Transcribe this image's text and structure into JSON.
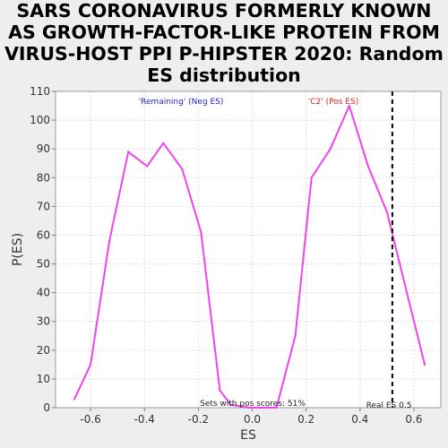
{
  "chart_data": {
    "type": "line",
    "title": "SARS CORONAVIRUS FORMERLY KNOWN AS GROWTH-FACTOR-LIKE PROTEIN FROM VIRUS-HOST PPI P-HIPSTER 2020: Random ES distribution",
    "xlabel": "ES",
    "ylabel": "P(ES)",
    "xlim": [
      -0.73,
      0.7
    ],
    "ylim": [
      0,
      110
    ],
    "x_ticks": [
      -0.6,
      -0.4,
      -0.2,
      0.0,
      0.2,
      0.4,
      0.6
    ],
    "x_tick_labels": [
      "-0.6",
      "-0.4",
      "-0.2",
      "0.0",
      "0.2",
      "0.4",
      "0.6"
    ],
    "y_ticks": [
      0,
      10,
      20,
      30,
      40,
      50,
      60,
      70,
      80,
      90,
      100,
      110
    ],
    "y_tick_labels": [
      "0",
      "10",
      "20",
      "30",
      "40",
      "50",
      "60",
      "70",
      "80",
      "90",
      "100",
      "110"
    ],
    "grid": true,
    "series": [
      {
        "name": "Random ES distribution",
        "color": "#ee44ee",
        "x": [
          -0.66,
          -0.6,
          -0.53,
          -0.46,
          -0.39,
          -0.33,
          -0.26,
          -0.19,
          -0.12,
          -0.08,
          -0.01,
          0.06,
          0.09,
          0.16,
          0.22,
          0.29,
          0.36,
          0.43,
          0.5,
          0.64
        ],
        "y": [
          3,
          15,
          58,
          89,
          84,
          92,
          83,
          61,
          6,
          1,
          0,
          0,
          0,
          25,
          80,
          90,
          105,
          84,
          68,
          15
        ]
      }
    ],
    "reference_line": {
      "x": 0.52,
      "label": "Real ES 0.5",
      "color": "#000000"
    },
    "legend": [
      {
        "label": "'Remaining' (Neg ES)",
        "color": "#2222cc"
      },
      {
        "label": "'C2' (Pos ES)",
        "color": "#dd2222"
      }
    ],
    "annotation": "Sets with pos scores: 51%"
  }
}
